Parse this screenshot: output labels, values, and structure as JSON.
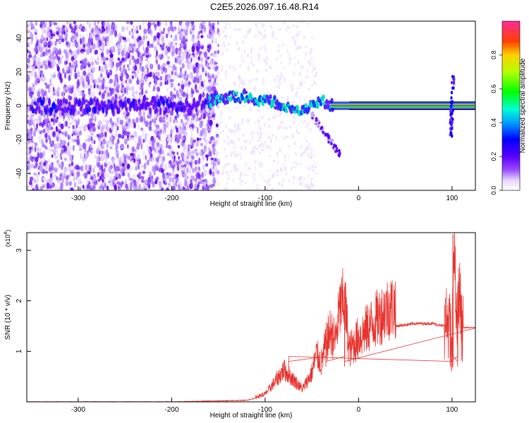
{
  "title": "C2E5.2026.097.16.48.R14",
  "chart_data": [
    {
      "type": "heatmap",
      "xlabel": "Height of straight line (km)",
      "ylabel": "Frequency (Hz)",
      "xlim": [
        -355,
        125
      ],
      "ylim": [
        -50,
        50
      ],
      "x_ticks": [
        "-300",
        "-200",
        "-100",
        "0",
        "100"
      ],
      "y_ticks": [
        "-40",
        "-20",
        "0",
        "20",
        "40"
      ],
      "colorbar": {
        "label": "Normalized spectral amplitude",
        "range": [
          0,
          1
        ],
        "ticks": [
          "0.0",
          "0.2",
          "0.4",
          "0.6",
          "0.8"
        ]
      },
      "ridge": {
        "x": [
          -345,
          -330,
          -320,
          -300,
          -280,
          -260,
          -240,
          -220,
          -200,
          -180,
          -160,
          -150,
          -140,
          -130,
          -120,
          -110,
          -100,
          -90,
          -80,
          -70,
          -60,
          -50,
          -40,
          -30,
          -20,
          -10,
          0,
          10,
          30,
          50,
          70,
          90,
          98,
          100,
          105,
          125
        ],
        "y": [
          0,
          0,
          0,
          0,
          0,
          0,
          1,
          0,
          0,
          0,
          3,
          4,
          5,
          5,
          6,
          4,
          3,
          2,
          0,
          -3,
          -4,
          0,
          3,
          0,
          0,
          0,
          1,
          0,
          0,
          0,
          0,
          0,
          3,
          0,
          -1,
          0
        ]
      }
    },
    {
      "type": "line",
      "xlabel": "Height of straight line (km)",
      "ylabel": "SNR (10 * v/v)",
      "y_multiplier": "(x10",
      "y_multiplier_exp": "4",
      "xlim": [
        -355,
        125
      ],
      "ylim": [
        0,
        3.35
      ],
      "x_ticks": [
        "-300",
        "-200",
        "-100",
        "0",
        "100"
      ],
      "y_ticks": [
        "1",
        "2",
        "3"
      ],
      "color": "#e8322d",
      "envelope": {
        "x": [
          -355,
          -300,
          -200,
          -120,
          -100,
          -90,
          -80,
          -70,
          -60,
          -50,
          -45,
          -40,
          -35,
          -30,
          -25,
          -20,
          -15,
          -10,
          -5,
          0,
          10,
          20,
          30,
          40,
          60,
          80,
          90,
          95,
          98,
          100,
          102,
          105,
          108,
          110,
          125
        ],
        "y": [
          0.0,
          0.0,
          0.0,
          0.03,
          0.12,
          0.3,
          0.5,
          0.35,
          0.2,
          0.45,
          0.75,
          0.6,
          0.9,
          1.1,
          0.95,
          1.45,
          1.6,
          0.8,
          0.9,
          1.0,
          1.15,
          1.3,
          1.45,
          1.5,
          1.55,
          1.55,
          1.5,
          1.6,
          1.5,
          0.7,
          3.3,
          1.4,
          2.3,
          1.47,
          1.47
        ]
      },
      "spikes": [
        {
          "x": -15,
          "y": 2.27
        },
        {
          "x": -35,
          "y": 1.1
        },
        {
          "x": -75,
          "y": 0.68
        },
        {
          "x": 101,
          "y": 3.32
        },
        {
          "x": 106,
          "y": 2.3
        },
        {
          "x": 98,
          "y": 1.8
        }
      ]
    }
  ]
}
